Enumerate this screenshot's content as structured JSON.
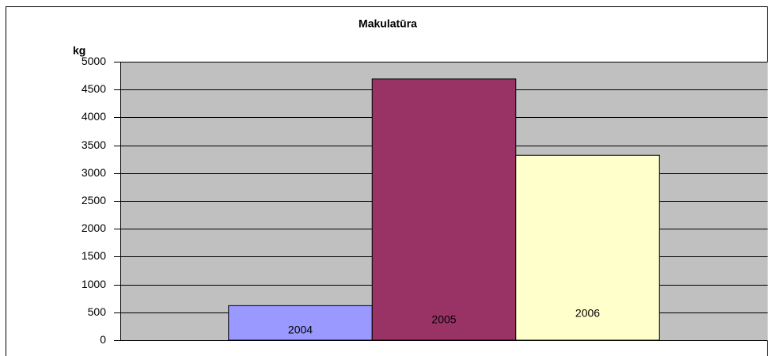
{
  "chart_data": {
    "type": "bar",
    "title": "Makulatūra",
    "y_label": "kg",
    "categories": [
      "2004",
      "2005",
      "2006"
    ],
    "values": [
      620,
      4690,
      3320
    ],
    "colors": [
      "#9999ff",
      "#993366",
      "#ffffcc"
    ],
    "ylim": [
      0,
      5000
    ],
    "yticks": [
      0,
      500,
      1000,
      1500,
      2000,
      2500,
      3000,
      3500,
      4000,
      4500,
      5000
    ],
    "grid": true
  }
}
